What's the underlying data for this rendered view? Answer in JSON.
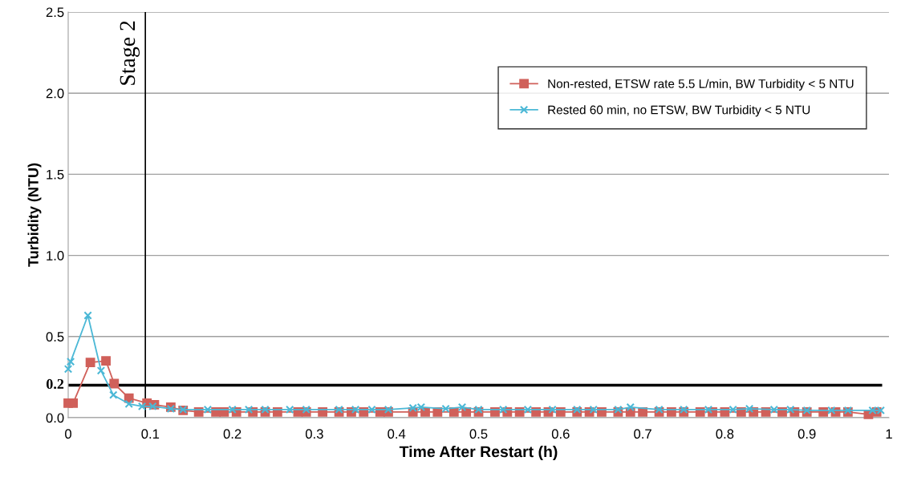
{
  "chart_data": {
    "type": "line",
    "xlabel": "Time After Restart (h)",
    "ylabel": "Turbidity (NTU)",
    "xlim": [
      0,
      1
    ],
    "ylim": [
      0,
      2.5
    ],
    "xticks": [
      0,
      0.1,
      0.2,
      0.3,
      0.4,
      0.5,
      0.6,
      0.7,
      0.8,
      0.9,
      1
    ],
    "yticks": [
      {
        "value": 0,
        "label": "0.0"
      },
      0.5,
      {
        "value": 1,
        "label": "1.0"
      },
      1.5,
      {
        "value": 2,
        "label": "2.0"
      },
      2.5
    ],
    "grid": "y",
    "legend": "top right",
    "ref_lines": [
      {
        "axis": "y",
        "value": 0.2,
        "label": "0.2",
        "color": "#000000"
      },
      {
        "axis": "x",
        "value": 0.094,
        "label": "Stage 2",
        "color": "#000000"
      }
    ],
    "series": [
      {
        "name": "Non-rested, ETSW rate 5.5 L/min, BW Turbidity < 5 NTU",
        "color": "#d0605a",
        "marker": "square",
        "x": [
          0,
          0.006,
          0.027,
          0.046,
          0.056,
          0.074,
          0.096,
          0.105,
          0.125,
          0.14,
          0.159,
          0.18,
          0.19,
          0.205,
          0.225,
          0.24,
          0.255,
          0.28,
          0.29,
          0.31,
          0.33,
          0.345,
          0.36,
          0.38,
          0.39,
          0.42,
          0.435,
          0.45,
          0.47,
          0.485,
          0.5,
          0.52,
          0.535,
          0.55,
          0.57,
          0.585,
          0.6,
          0.62,
          0.635,
          0.65,
          0.67,
          0.685,
          0.7,
          0.72,
          0.735,
          0.75,
          0.77,
          0.785,
          0.8,
          0.82,
          0.835,
          0.85,
          0.87,
          0.885,
          0.9,
          0.92,
          0.935,
          0.95,
          0.975,
          0.985
        ],
        "values": [
          0.09,
          0.09,
          0.34,
          0.35,
          0.21,
          0.12,
          0.09,
          0.08,
          0.065,
          0.045,
          0.035,
          0.035,
          0.035,
          0.035,
          0.035,
          0.035,
          0.035,
          0.035,
          0.035,
          0.035,
          0.035,
          0.035,
          0.035,
          0.035,
          0.035,
          0.035,
          0.035,
          0.035,
          0.035,
          0.035,
          0.035,
          0.035,
          0.035,
          0.035,
          0.035,
          0.035,
          0.035,
          0.035,
          0.035,
          0.035,
          0.035,
          0.035,
          0.035,
          0.035,
          0.035,
          0.035,
          0.035,
          0.035,
          0.035,
          0.035,
          0.035,
          0.035,
          0.035,
          0.035,
          0.035,
          0.035,
          0.035,
          0.035,
          0.02,
          0.035
        ]
      },
      {
        "name": "Rested 60 min, no ETSW, BW Turbidity < 5 NTU",
        "color": "#4bb8d6",
        "marker": "cross",
        "x": [
          0,
          0.003,
          0.024,
          0.04,
          0.055,
          0.074,
          0.09,
          0.103,
          0.125,
          0.14,
          0.17,
          0.2,
          0.22,
          0.24,
          0.27,
          0.29,
          0.33,
          0.35,
          0.37,
          0.39,
          0.42,
          0.43,
          0.46,
          0.48,
          0.5,
          0.53,
          0.56,
          0.59,
          0.62,
          0.64,
          0.67,
          0.685,
          0.72,
          0.75,
          0.78,
          0.81,
          0.83,
          0.86,
          0.88,
          0.9,
          0.93,
          0.95,
          0.98,
          0.99
        ],
        "values": [
          0.3,
          0.345,
          0.63,
          0.29,
          0.14,
          0.085,
          0.07,
          0.07,
          0.055,
          0.05,
          0.05,
          0.05,
          0.05,
          0.05,
          0.05,
          0.05,
          0.05,
          0.05,
          0.05,
          0.05,
          0.06,
          0.065,
          0.055,
          0.065,
          0.05,
          0.05,
          0.05,
          0.05,
          0.05,
          0.05,
          0.05,
          0.065,
          0.05,
          0.05,
          0.05,
          0.05,
          0.055,
          0.05,
          0.05,
          0.045,
          0.045,
          0.045,
          0.045,
          0.045
        ]
      }
    ]
  }
}
